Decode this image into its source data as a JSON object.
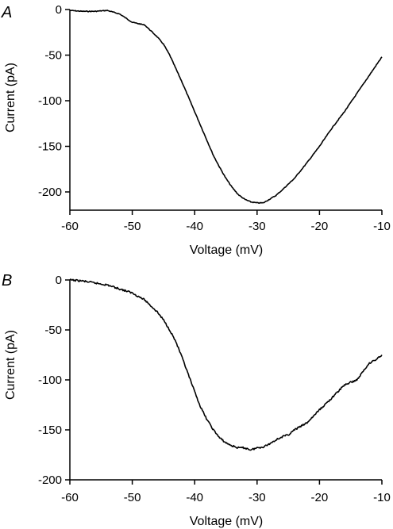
{
  "chart_data": [
    {
      "type": "line",
      "panel_label": "A",
      "xlabel": "Voltage (mV)",
      "ylabel": "Current (pA)",
      "xlim": [
        -60,
        -10
      ],
      "ylim": [
        -220,
        0
      ],
      "xticks": [
        "-60",
        "-50",
        "-40",
        "-30",
        "-20",
        "-10"
      ],
      "yticks": [
        "0",
        "-50",
        "-100",
        "-150",
        "-200"
      ],
      "grid": false,
      "series": [
        {
          "x": [
            -60,
            -58,
            -56,
            -54,
            -52,
            -50,
            -48,
            -46,
            -45,
            -44,
            -43,
            -42,
            -41,
            -40,
            -39,
            -38,
            -37,
            -36,
            -35,
            -34,
            -33,
            -32,
            -31,
            -30,
            -29,
            -28,
            -27,
            -26,
            -24,
            -22,
            -20,
            -18,
            -16,
            -14,
            -12,
            -10
          ],
          "y": [
            -1,
            -2,
            -2,
            -1,
            -5,
            -14,
            -17,
            -30,
            -38,
            -50,
            -65,
            -80,
            -96,
            -112,
            -128,
            -144,
            -160,
            -173,
            -185,
            -195,
            -203,
            -208,
            -211,
            -212,
            -212,
            -208,
            -204,
            -198,
            -185,
            -168,
            -150,
            -130,
            -112,
            -92,
            -72,
            -52
          ]
        }
      ]
    },
    {
      "type": "line",
      "panel_label": "B",
      "xlabel": "Voltage (mV)",
      "ylabel": "Current (pA)",
      "xlim": [
        -60,
        -10
      ],
      "ylim": [
        -200,
        0
      ],
      "xticks": [
        "-60",
        "-50",
        "-40",
        "-30",
        "-20",
        "-10"
      ],
      "yticks": [
        "0",
        "-50",
        "-100",
        "-150",
        "-200"
      ],
      "grid": false,
      "series": [
        {
          "x": [
            -60,
            -58,
            -56,
            -54,
            -52,
            -50,
            -48,
            -46,
            -45,
            -44,
            -43,
            -42,
            -41,
            -40,
            -39,
            -38,
            -37,
            -36,
            -35,
            -34,
            -33,
            -32,
            -31,
            -30,
            -29,
            -28,
            -27,
            -26,
            -25,
            -24,
            -22,
            -20,
            -18,
            -16,
            -14,
            -12,
            -11,
            -10
          ],
          "y": [
            0,
            -1,
            -3,
            -5,
            -9,
            -13,
            -20,
            -32,
            -40,
            -50,
            -62,
            -78,
            -95,
            -112,
            -128,
            -140,
            -150,
            -158,
            -163,
            -166,
            -168,
            -168,
            -170,
            -168,
            -167,
            -164,
            -160,
            -157,
            -155,
            -150,
            -143,
            -130,
            -118,
            -105,
            -100,
            -83,
            -80,
            -75
          ]
        }
      ]
    }
  ]
}
